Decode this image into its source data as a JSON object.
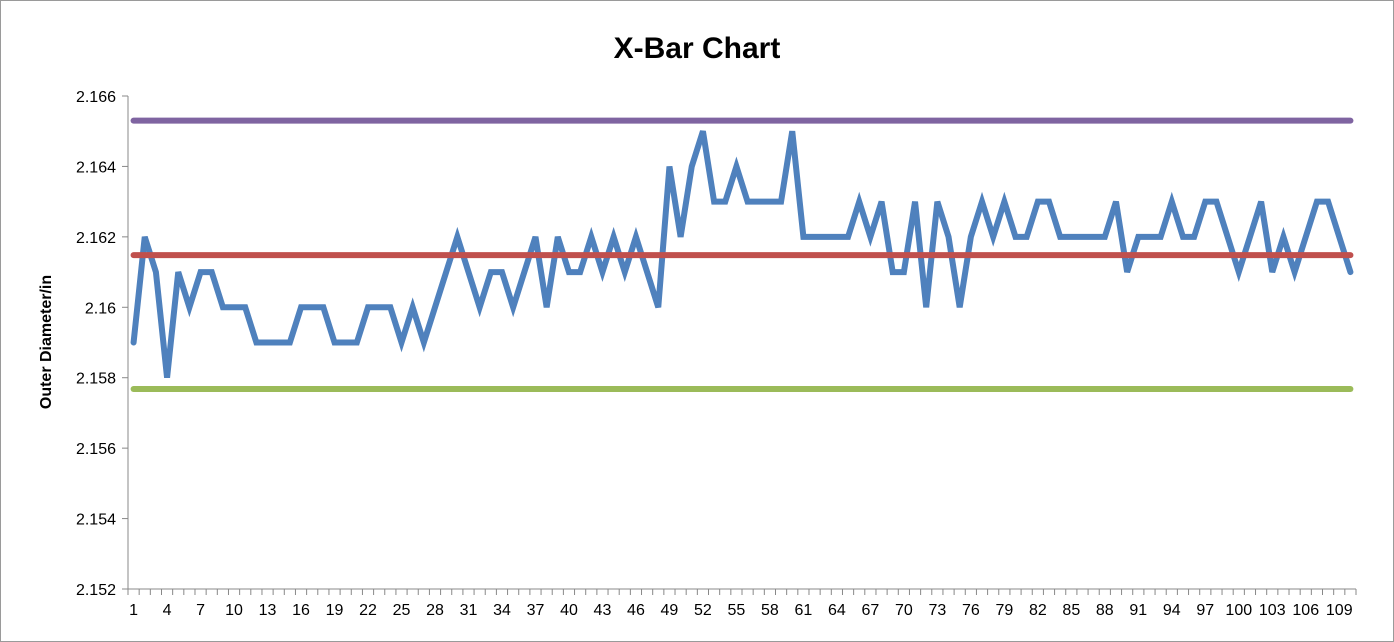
{
  "chart_data": {
    "type": "line",
    "title": "X-Bar Chart",
    "xlabel": "",
    "ylabel": "Outer Diameter/in",
    "ylim": [
      2.152,
      2.166
    ],
    "y_ticks": [
      "2.152",
      "2.154",
      "2.156",
      "2.158",
      "2.16",
      "2.162",
      "2.164",
      "2.166"
    ],
    "x_tick_labels": [
      "1",
      "4",
      "7",
      "10",
      "13",
      "16",
      "19",
      "22",
      "25",
      "28",
      "31",
      "34",
      "37",
      "40",
      "43",
      "46",
      "49",
      "52",
      "55",
      "58",
      "61",
      "64",
      "67",
      "70",
      "73",
      "76",
      "79",
      "82",
      "85",
      "88",
      "91",
      "94",
      "97",
      "100",
      "103",
      "106",
      "109"
    ],
    "grid": false,
    "legend": "none",
    "x_start": 1,
    "x_end": 110,
    "series": [
      {
        "color": "#4f81bd",
        "values": [
          2.159,
          2.162,
          2.161,
          2.158,
          2.161,
          2.16,
          2.161,
          2.161,
          2.16,
          2.16,
          2.16,
          2.159,
          2.159,
          2.159,
          2.159,
          2.16,
          2.16,
          2.16,
          2.159,
          2.159,
          2.159,
          2.16,
          2.16,
          2.16,
          2.159,
          2.16,
          2.159,
          2.16,
          2.161,
          2.162,
          2.161,
          2.16,
          2.161,
          2.161,
          2.16,
          2.161,
          2.162,
          2.16,
          2.162,
          2.161,
          2.161,
          2.162,
          2.161,
          2.162,
          2.161,
          2.162,
          2.161,
          2.16,
          2.164,
          2.162,
          2.164,
          2.165,
          2.163,
          2.163,
          2.164,
          2.163,
          2.163,
          2.163,
          2.163,
          2.165,
          2.162,
          2.162,
          2.162,
          2.162,
          2.162,
          2.163,
          2.162,
          2.163,
          2.161,
          2.161,
          2.163,
          2.16,
          2.163,
          2.162,
          2.16,
          2.162,
          2.163,
          2.162,
          2.163,
          2.162,
          2.162,
          2.163,
          2.163,
          2.162,
          2.162,
          2.162,
          2.162,
          2.162,
          2.163,
          2.161,
          2.162,
          2.162,
          2.162,
          2.163,
          2.162,
          2.162,
          2.163,
          2.163,
          2.162,
          2.161,
          2.162,
          2.163,
          2.161,
          2.162,
          2.161,
          2.162,
          2.163,
          2.163,
          2.162,
          2.161
        ]
      },
      {
        "color": "#7f64a1",
        "values": [
          2.1653,
          2.1653
        ]
      },
      {
        "color": "#c0504d",
        "values": [
          2.16148,
          2.16148
        ]
      },
      {
        "color": "#9bbb59",
        "values": [
          2.15768,
          2.15768
        ]
      }
    ]
  }
}
